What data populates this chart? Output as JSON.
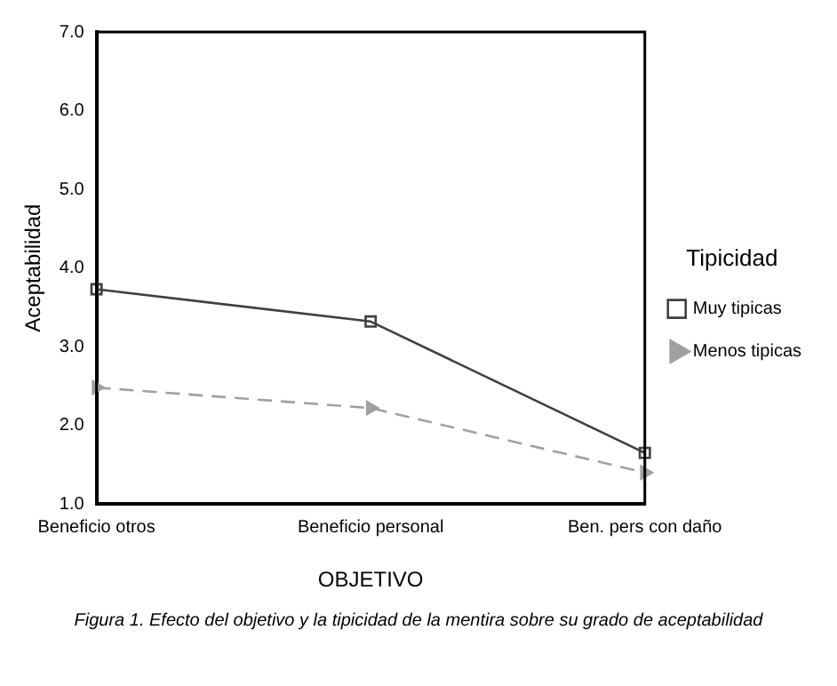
{
  "chart_data": {
    "type": "line",
    "xlabel": "OBJETIVO",
    "ylabel": "Aceptabilidad",
    "legend_title": "Tipicidad",
    "categories": [
      "Beneficio otros",
      "Beneficio personal",
      "Ben. pers con daño"
    ],
    "series": [
      {
        "name": "Muy tipicas",
        "color": "#404040",
        "values": [
          3.73,
          3.32,
          1.65
        ],
        "marker": "square",
        "line_style": "solid"
      },
      {
        "name": "Menos tipicas",
        "color": "#a0a0a0",
        "values": [
          2.48,
          2.22,
          1.4
        ],
        "marker": "triangle",
        "line_style": "dashed"
      }
    ],
    "ylim": [
      1,
      7
    ],
    "yticks": [
      {
        "value": 1,
        "label": "1.0"
      },
      {
        "value": 2,
        "label": "2.0"
      },
      {
        "value": 3,
        "label": "3.0"
      },
      {
        "value": 4,
        "label": "4.0"
      },
      {
        "value": 5,
        "label": "5.0"
      },
      {
        "value": 6,
        "label": "6.0"
      },
      {
        "value": 7,
        "label": "7.0"
      }
    ],
    "grid": false,
    "legend": "right",
    "annotations": [
      "Figura 1. Efecto del objetivo y la tipicidad de la mentira sobre su grado de aceptabilidad"
    ]
  }
}
